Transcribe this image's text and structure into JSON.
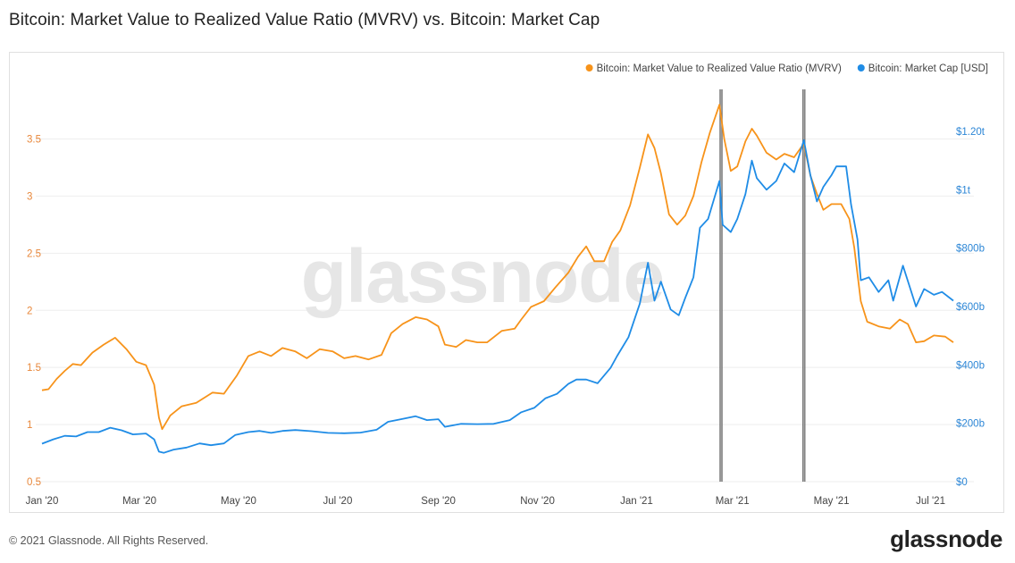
{
  "title": "Bitcoin: Market Value to Realized Value Ratio (MVRV) vs. Bitcoin: Market Cap",
  "footer": {
    "copyright": "© 2021 Glassnode. All Rights Reserved.",
    "logo": "glassnode"
  },
  "chart_data": {
    "type": "line",
    "title": "Bitcoin: Market Value to Realized Value Ratio (MVRV) vs. Bitcoin: Market Cap",
    "watermark": "glassnode",
    "x_ticks": [
      "Jan '20",
      "Mar '20",
      "May '20",
      "Jul '20",
      "Sep '20",
      "Nov '20",
      "Jan '21",
      "Mar '21",
      "May '21",
      "Jul '21"
    ],
    "x_range": [
      "2020-01-01",
      "2021-07-15"
    ],
    "y_left": {
      "ticks": [
        "0.5",
        "1",
        "1.5",
        "2",
        "2.5",
        "3",
        "3.5"
      ],
      "range": [
        0.5,
        3.95
      ],
      "color": "#f7931a"
    },
    "y_right": {
      "ticks": [
        "$0",
        "$200b",
        "$400b",
        "$600b",
        "$800b",
        "$1t",
        "$1.20t"
      ],
      "range": [
        0,
        1350
      ],
      "unit": "billion USD",
      "color": "#1f8ce6"
    },
    "legend": {
      "placement": "top-right"
    },
    "grid": true,
    "series": [
      {
        "name": "Bitcoin: Market Value to Realized Value Ratio (MVRV)",
        "axis": "left",
        "color": "#f7931a",
        "points": [
          [
            "2020-01-01",
            1.3
          ],
          [
            "2020-01-05",
            1.31
          ],
          [
            "2020-01-10",
            1.4
          ],
          [
            "2020-01-15",
            1.47
          ],
          [
            "2020-01-20",
            1.53
          ],
          [
            "2020-01-25",
            1.52
          ],
          [
            "2020-02-01",
            1.63
          ],
          [
            "2020-02-08",
            1.7
          ],
          [
            "2020-02-15",
            1.76
          ],
          [
            "2020-02-22",
            1.66
          ],
          [
            "2020-02-28",
            1.55
          ],
          [
            "2020-03-05",
            1.52
          ],
          [
            "2020-03-10",
            1.35
          ],
          [
            "2020-03-13",
            1.06
          ],
          [
            "2020-03-15",
            0.96
          ],
          [
            "2020-03-20",
            1.08
          ],
          [
            "2020-03-27",
            1.16
          ],
          [
            "2020-04-05",
            1.19
          ],
          [
            "2020-04-15",
            1.28
          ],
          [
            "2020-04-22",
            1.27
          ],
          [
            "2020-04-30",
            1.43
          ],
          [
            "2020-05-07",
            1.6
          ],
          [
            "2020-05-14",
            1.64
          ],
          [
            "2020-05-21",
            1.6
          ],
          [
            "2020-05-28",
            1.67
          ],
          [
            "2020-06-05",
            1.64
          ],
          [
            "2020-06-12",
            1.58
          ],
          [
            "2020-06-20",
            1.66
          ],
          [
            "2020-06-28",
            1.64
          ],
          [
            "2020-07-05",
            1.58
          ],
          [
            "2020-07-12",
            1.6
          ],
          [
            "2020-07-20",
            1.57
          ],
          [
            "2020-07-28",
            1.61
          ],
          [
            "2020-08-03",
            1.8
          ],
          [
            "2020-08-10",
            1.88
          ],
          [
            "2020-08-18",
            1.94
          ],
          [
            "2020-08-25",
            1.92
          ],
          [
            "2020-09-01",
            1.86
          ],
          [
            "2020-09-05",
            1.7
          ],
          [
            "2020-09-12",
            1.68
          ],
          [
            "2020-09-18",
            1.74
          ],
          [
            "2020-09-25",
            1.72
          ],
          [
            "2020-10-01",
            1.72
          ],
          [
            "2020-10-10",
            1.82
          ],
          [
            "2020-10-18",
            1.84
          ],
          [
            "2020-10-22",
            1.92
          ],
          [
            "2020-10-28",
            2.03
          ],
          [
            "2020-11-05",
            2.08
          ],
          [
            "2020-11-12",
            2.2
          ],
          [
            "2020-11-20",
            2.33
          ],
          [
            "2020-11-26",
            2.47
          ],
          [
            "2020-12-01",
            2.56
          ],
          [
            "2020-12-06",
            2.43
          ],
          [
            "2020-12-12",
            2.43
          ],
          [
            "2020-12-17",
            2.6
          ],
          [
            "2020-12-22",
            2.7
          ],
          [
            "2020-12-28",
            2.92
          ],
          [
            "2021-01-03",
            3.25
          ],
          [
            "2021-01-08",
            3.54
          ],
          [
            "2021-01-12",
            3.42
          ],
          [
            "2021-01-16",
            3.2
          ],
          [
            "2021-01-21",
            2.84
          ],
          [
            "2021-01-26",
            2.75
          ],
          [
            "2021-01-31",
            2.83
          ],
          [
            "2021-02-05",
            3.0
          ],
          [
            "2021-02-10",
            3.3
          ],
          [
            "2021-02-15",
            3.55
          ],
          [
            "2021-02-21",
            3.8
          ],
          [
            "2021-02-24",
            3.5
          ],
          [
            "2021-02-28",
            3.22
          ],
          [
            "2021-03-04",
            3.26
          ],
          [
            "2021-03-09",
            3.48
          ],
          [
            "2021-03-13",
            3.59
          ],
          [
            "2021-03-16",
            3.53
          ],
          [
            "2021-03-22",
            3.38
          ],
          [
            "2021-03-28",
            3.32
          ],
          [
            "2021-04-02",
            3.37
          ],
          [
            "2021-04-08",
            3.34
          ],
          [
            "2021-04-14",
            3.46
          ],
          [
            "2021-04-18",
            3.18
          ],
          [
            "2021-04-22",
            3.02
          ],
          [
            "2021-04-26",
            2.88
          ],
          [
            "2021-05-01",
            2.93
          ],
          [
            "2021-05-07",
            2.93
          ],
          [
            "2021-05-12",
            2.8
          ],
          [
            "2021-05-15",
            2.55
          ],
          [
            "2021-05-19",
            2.08
          ],
          [
            "2021-05-23",
            1.9
          ],
          [
            "2021-05-30",
            1.86
          ],
          [
            "2021-06-06",
            1.84
          ],
          [
            "2021-06-12",
            1.92
          ],
          [
            "2021-06-17",
            1.88
          ],
          [
            "2021-06-22",
            1.72
          ],
          [
            "2021-06-27",
            1.73
          ],
          [
            "2021-07-03",
            1.78
          ],
          [
            "2021-07-10",
            1.77
          ],
          [
            "2021-07-15",
            1.72
          ]
        ]
      },
      {
        "name": "Bitcoin: Market Cap [USD]",
        "axis": "right",
        "color": "#1f8ce6",
        "points": [
          [
            "2020-01-01",
            130
          ],
          [
            "2020-01-08",
            145
          ],
          [
            "2020-01-15",
            157
          ],
          [
            "2020-01-22",
            155
          ],
          [
            "2020-01-29",
            170
          ],
          [
            "2020-02-05",
            170
          ],
          [
            "2020-02-12",
            185
          ],
          [
            "2020-02-19",
            176
          ],
          [
            "2020-02-26",
            162
          ],
          [
            "2020-03-05",
            165
          ],
          [
            "2020-03-10",
            145
          ],
          [
            "2020-03-13",
            103
          ],
          [
            "2020-03-16",
            99
          ],
          [
            "2020-03-22",
            110
          ],
          [
            "2020-03-30",
            117
          ],
          [
            "2020-04-07",
            131
          ],
          [
            "2020-04-14",
            125
          ],
          [
            "2020-04-22",
            131
          ],
          [
            "2020-04-29",
            160
          ],
          [
            "2020-05-07",
            170
          ],
          [
            "2020-05-14",
            174
          ],
          [
            "2020-05-21",
            167
          ],
          [
            "2020-05-28",
            174
          ],
          [
            "2020-06-05",
            177
          ],
          [
            "2020-06-15",
            173
          ],
          [
            "2020-06-25",
            167
          ],
          [
            "2020-07-05",
            166
          ],
          [
            "2020-07-15",
            168
          ],
          [
            "2020-07-25",
            178
          ],
          [
            "2020-08-01",
            205
          ],
          [
            "2020-08-10",
            215
          ],
          [
            "2020-08-18",
            224
          ],
          [
            "2020-08-25",
            211
          ],
          [
            "2020-09-01",
            214
          ],
          [
            "2020-09-05",
            188
          ],
          [
            "2020-09-15",
            198
          ],
          [
            "2020-09-25",
            197
          ],
          [
            "2020-10-05",
            198
          ],
          [
            "2020-10-15",
            211
          ],
          [
            "2020-10-22",
            238
          ],
          [
            "2020-10-30",
            253
          ],
          [
            "2020-11-06",
            286
          ],
          [
            "2020-11-13",
            301
          ],
          [
            "2020-11-20",
            335
          ],
          [
            "2020-11-25",
            350
          ],
          [
            "2020-12-01",
            350
          ],
          [
            "2020-12-08",
            337
          ],
          [
            "2020-12-16",
            390
          ],
          [
            "2020-12-20",
            430
          ],
          [
            "2020-12-27",
            495
          ],
          [
            "2021-01-03",
            610
          ],
          [
            "2021-01-08",
            750
          ],
          [
            "2021-01-12",
            620
          ],
          [
            "2021-01-16",
            685
          ],
          [
            "2021-01-22",
            590
          ],
          [
            "2021-01-27",
            570
          ],
          [
            "2021-01-31",
            630
          ],
          [
            "2021-02-05",
            700
          ],
          [
            "2021-02-09",
            870
          ],
          [
            "2021-02-14",
            900
          ],
          [
            "2021-02-21",
            1030
          ],
          [
            "2021-02-23",
            880
          ],
          [
            "2021-02-28",
            855
          ],
          [
            "2021-03-04",
            900
          ],
          [
            "2021-03-09",
            985
          ],
          [
            "2021-03-13",
            1100
          ],
          [
            "2021-03-16",
            1040
          ],
          [
            "2021-03-22",
            1000
          ],
          [
            "2021-03-28",
            1030
          ],
          [
            "2021-04-02",
            1090
          ],
          [
            "2021-04-08",
            1060
          ],
          [
            "2021-04-14",
            1170
          ],
          [
            "2021-04-18",
            1050
          ],
          [
            "2021-04-22",
            960
          ],
          [
            "2021-04-26",
            1010
          ],
          [
            "2021-05-01",
            1050
          ],
          [
            "2021-05-04",
            1080
          ],
          [
            "2021-05-10",
            1080
          ],
          [
            "2021-05-13",
            950
          ],
          [
            "2021-05-17",
            830
          ],
          [
            "2021-05-19",
            690
          ],
          [
            "2021-05-24",
            700
          ],
          [
            "2021-05-30",
            650
          ],
          [
            "2021-06-05",
            690
          ],
          [
            "2021-06-08",
            620
          ],
          [
            "2021-06-14",
            740
          ],
          [
            "2021-06-18",
            670
          ],
          [
            "2021-06-22",
            600
          ],
          [
            "2021-06-27",
            660
          ],
          [
            "2021-07-03",
            640
          ],
          [
            "2021-07-08",
            650
          ],
          [
            "2021-07-15",
            620
          ]
        ]
      }
    ],
    "markers": [
      "2021-02-22",
      "2021-04-14"
    ]
  }
}
